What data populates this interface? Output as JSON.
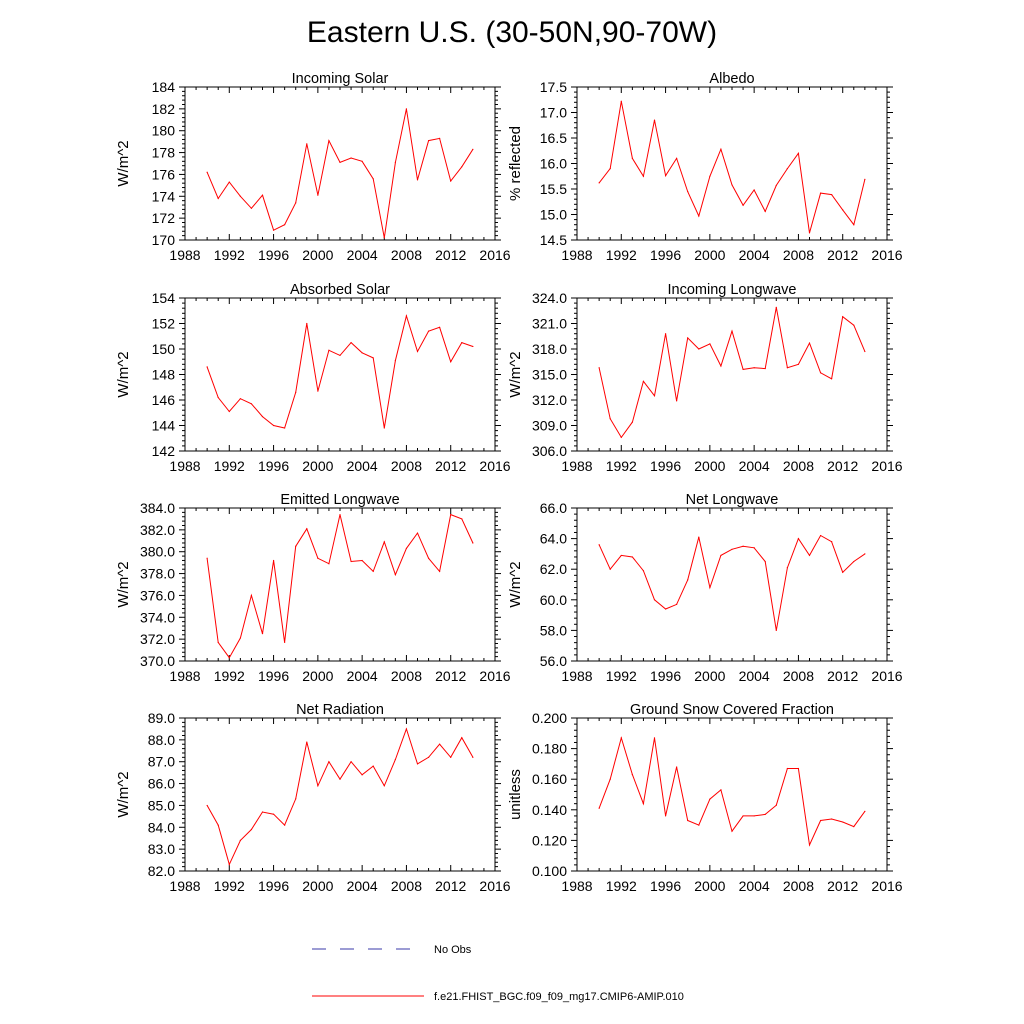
{
  "figure": {
    "title": "Eastern U.S. (30-50N,90-70W)",
    "series_color": "#ff0000",
    "obs_color": "#3a3aaa"
  },
  "legend": {
    "obs_label": "No Obs",
    "model_label": "f.e21.FHIST_BGC.f09_f09_mg17.CMIP6-AMIP.010"
  },
  "chart_data": [
    {
      "type": "line",
      "title": "Incoming Solar",
      "ylabel": "W/m^2",
      "xlabel": "",
      "xlim": [
        1988,
        2016
      ],
      "xticks": [
        1988,
        1992,
        1996,
        2000,
        2004,
        2008,
        2012,
        2016
      ],
      "ylim": [
        170,
        184
      ],
      "yticks": [
        170,
        172,
        174,
        176,
        178,
        180,
        182,
        184
      ],
      "ytick_decimals": 0,
      "x": [
        1990,
        1991,
        1992,
        1993,
        1994,
        1995,
        1996,
        1997,
        1998,
        1999,
        2000,
        2001,
        2002,
        2003,
        2004,
        2005,
        2006,
        2007,
        2008,
        2009,
        2010,
        2011,
        2012,
        2013,
        2014
      ],
      "series": [
        {
          "name": "f.e21.FHIST_BGC.f09_f09_mg17.CMIP6-AMIP.010",
          "values": [
            176.2,
            173.8,
            175.3,
            174.0,
            172.9,
            174.1,
            170.9,
            171.4,
            173.4,
            178.8,
            174.1,
            179.1,
            177.1,
            177.5,
            177.2,
            175.6,
            170.2,
            177.1,
            182.0,
            175.5,
            179.1,
            179.3,
            175.4,
            176.7,
            178.3
          ]
        }
      ]
    },
    {
      "type": "line",
      "title": "Albedo",
      "ylabel": "% reflected",
      "xlabel": "",
      "xlim": [
        1988,
        2016
      ],
      "xticks": [
        1988,
        1992,
        1996,
        2000,
        2004,
        2008,
        2012,
        2016
      ],
      "ylim": [
        14.5,
        17.5
      ],
      "yticks": [
        14.5,
        15.0,
        15.5,
        16.0,
        16.5,
        17.0,
        17.5
      ],
      "ytick_decimals": 1,
      "x": [
        1990,
        1991,
        1992,
        1993,
        1994,
        1995,
        1996,
        1997,
        1998,
        1999,
        2000,
        2001,
        2002,
        2003,
        2004,
        2005,
        2006,
        2007,
        2008,
        2009,
        2010,
        2011,
        2012,
        2013,
        2014
      ],
      "series": [
        {
          "name": "f.e21.FHIST_BGC.f09_f09_mg17.CMIP6-AMIP.010",
          "values": [
            15.62,
            15.9,
            17.22,
            16.1,
            15.75,
            16.85,
            15.76,
            16.1,
            15.45,
            14.97,
            15.75,
            16.28,
            15.58,
            15.18,
            15.48,
            15.06,
            15.57,
            15.9,
            16.2,
            14.64,
            15.42,
            15.39,
            15.09,
            14.8,
            15.69
          ]
        }
      ]
    },
    {
      "type": "line",
      "title": "Absorbed Solar",
      "ylabel": "W/m^2",
      "xlabel": "",
      "xlim": [
        1988,
        2016
      ],
      "xticks": [
        1988,
        1992,
        1996,
        2000,
        2004,
        2008,
        2012,
        2016
      ],
      "ylim": [
        142,
        154
      ],
      "yticks": [
        142,
        144,
        146,
        148,
        150,
        152,
        154
      ],
      "ytick_decimals": 0,
      "x": [
        1990,
        1991,
        1992,
        1993,
        1994,
        1995,
        1996,
        1997,
        1998,
        1999,
        2000,
        2001,
        2002,
        2003,
        2004,
        2005,
        2006,
        2007,
        2008,
        2009,
        2010,
        2011,
        2012,
        2013,
        2014
      ],
      "series": [
        {
          "name": "f.e21.FHIST_BGC.f09_f09_mg17.CMIP6-AMIP.010",
          "values": [
            148.6,
            146.2,
            145.1,
            146.1,
            145.7,
            144.7,
            144.0,
            143.8,
            146.6,
            152.0,
            146.7,
            149.9,
            149.5,
            150.5,
            149.7,
            149.3,
            143.8,
            149.1,
            152.6,
            149.8,
            151.4,
            151.7,
            149.0,
            150.5,
            150.2
          ]
        }
      ]
    },
    {
      "type": "line",
      "title": "Incoming Longwave",
      "ylabel": "W/m^2",
      "xlabel": "",
      "xlim": [
        1988,
        2016
      ],
      "xticks": [
        1988,
        1992,
        1996,
        2000,
        2004,
        2008,
        2012,
        2016
      ],
      "ylim": [
        306,
        324
      ],
      "yticks": [
        306,
        309,
        312,
        315,
        318,
        321,
        324
      ],
      "ytick_decimals": 1,
      "x": [
        1990,
        1991,
        1992,
        1993,
        1994,
        1995,
        1996,
        1997,
        1998,
        1999,
        2000,
        2001,
        2002,
        2003,
        2004,
        2005,
        2006,
        2007,
        2008,
        2009,
        2010,
        2011,
        2012,
        2013,
        2014
      ],
      "series": [
        {
          "name": "f.e21.FHIST_BGC.f09_f09_mg17.CMIP6-AMIP.010",
          "values": [
            315.8,
            309.8,
            307.6,
            309.4,
            314.2,
            312.5,
            319.8,
            311.9,
            319.3,
            318.0,
            318.6,
            316.0,
            320.1,
            315.6,
            315.8,
            315.7,
            322.9,
            315.8,
            316.2,
            318.7,
            315.2,
            314.5,
            321.8,
            320.8,
            317.7
          ]
        }
      ]
    },
    {
      "type": "line",
      "title": "Emitted Longwave",
      "ylabel": "W/m^2",
      "xlabel": "",
      "xlim": [
        1988,
        2016
      ],
      "xticks": [
        1988,
        1992,
        1996,
        2000,
        2004,
        2008,
        2012,
        2016
      ],
      "ylim": [
        370,
        384
      ],
      "yticks": [
        370,
        372,
        374,
        376,
        378,
        380,
        382,
        384
      ],
      "ytick_decimals": 1,
      "x": [
        1990,
        1991,
        1992,
        1993,
        1994,
        1995,
        1996,
        1997,
        1998,
        1999,
        2000,
        2001,
        2002,
        2003,
        2004,
        2005,
        2006,
        2007,
        2008,
        2009,
        2010,
        2011,
        2012,
        2013,
        2014
      ],
      "series": [
        {
          "name": "f.e21.FHIST_BGC.f09_f09_mg17.CMIP6-AMIP.010",
          "values": [
            379.4,
            371.7,
            370.3,
            372.1,
            376.0,
            372.5,
            379.2,
            371.7,
            380.5,
            382.1,
            379.4,
            378.9,
            383.4,
            379.1,
            379.2,
            378.2,
            380.9,
            377.9,
            380.3,
            381.7,
            379.4,
            378.2,
            383.4,
            383.0,
            380.8
          ]
        }
      ]
    },
    {
      "type": "line",
      "title": "Net Longwave",
      "ylabel": "W/m^2",
      "xlabel": "",
      "xlim": [
        1988,
        2016
      ],
      "xticks": [
        1988,
        1992,
        1996,
        2000,
        2004,
        2008,
        2012,
        2016
      ],
      "ylim": [
        56,
        66
      ],
      "yticks": [
        56,
        58,
        60,
        62,
        64,
        66
      ],
      "ytick_decimals": 1,
      "x": [
        1990,
        1991,
        1992,
        1993,
        1994,
        1995,
        1996,
        1997,
        1998,
        1999,
        2000,
        2001,
        2002,
        2003,
        2004,
        2005,
        2006,
        2007,
        2008,
        2009,
        2010,
        2011,
        2012,
        2013,
        2014
      ],
      "series": [
        {
          "name": "f.e21.FHIST_BGC.f09_f09_mg17.CMIP6-AMIP.010",
          "values": [
            63.6,
            62.0,
            62.9,
            62.8,
            61.9,
            60.0,
            59.4,
            59.7,
            61.3,
            64.1,
            60.8,
            62.9,
            63.3,
            63.5,
            63.4,
            62.5,
            58.0,
            62.1,
            64.0,
            62.9,
            64.2,
            63.8,
            61.8,
            62.5,
            63.0
          ]
        }
      ]
    },
    {
      "type": "line",
      "title": "Net Radiation",
      "ylabel": "W/m^2",
      "xlabel": "",
      "xlim": [
        1988,
        2016
      ],
      "xticks": [
        1988,
        1992,
        1996,
        2000,
        2004,
        2008,
        2012,
        2016
      ],
      "ylim": [
        82,
        89
      ],
      "yticks": [
        82,
        83,
        84,
        85,
        86,
        87,
        88,
        89
      ],
      "ytick_decimals": 1,
      "x": [
        1990,
        1991,
        1992,
        1993,
        1994,
        1995,
        1996,
        1997,
        1998,
        1999,
        2000,
        2001,
        2002,
        2003,
        2004,
        2005,
        2006,
        2007,
        2008,
        2009,
        2010,
        2011,
        2012,
        2013,
        2014
      ],
      "series": [
        {
          "name": "f.e21.FHIST_BGC.f09_f09_mg17.CMIP6-AMIP.010",
          "values": [
            85.0,
            84.1,
            82.3,
            83.4,
            83.9,
            84.7,
            84.6,
            84.1,
            85.3,
            87.9,
            85.9,
            87.0,
            86.2,
            87.0,
            86.4,
            86.8,
            85.9,
            87.1,
            88.5,
            86.9,
            87.2,
            87.8,
            87.2,
            88.1,
            87.2
          ]
        }
      ]
    },
    {
      "type": "line",
      "title": "Ground Snow Covered Fraction",
      "ylabel": "unitless",
      "xlabel": "",
      "xlim": [
        1988,
        2016
      ],
      "xticks": [
        1988,
        1992,
        1996,
        2000,
        2004,
        2008,
        2012,
        2016
      ],
      "ylim": [
        0.1,
        0.2
      ],
      "yticks": [
        0.1,
        0.12,
        0.14,
        0.16,
        0.18,
        0.2
      ],
      "ytick_decimals": 3,
      "x": [
        1990,
        1991,
        1992,
        1993,
        1994,
        1995,
        1996,
        1997,
        1998,
        1999,
        2000,
        2001,
        2002,
        2003,
        2004,
        2005,
        2006,
        2007,
        2008,
        2009,
        2010,
        2011,
        2012,
        2013,
        2014
      ],
      "series": [
        {
          "name": "f.e21.FHIST_BGC.f09_f09_mg17.CMIP6-AMIP.010",
          "values": [
            0.141,
            0.16,
            0.187,
            0.163,
            0.144,
            0.187,
            0.136,
            0.168,
            0.133,
            0.13,
            0.147,
            0.153,
            0.126,
            0.136,
            0.136,
            0.137,
            0.143,
            0.167,
            0.167,
            0.117,
            0.133,
            0.134,
            0.132,
            0.129,
            0.139
          ]
        }
      ]
    }
  ]
}
